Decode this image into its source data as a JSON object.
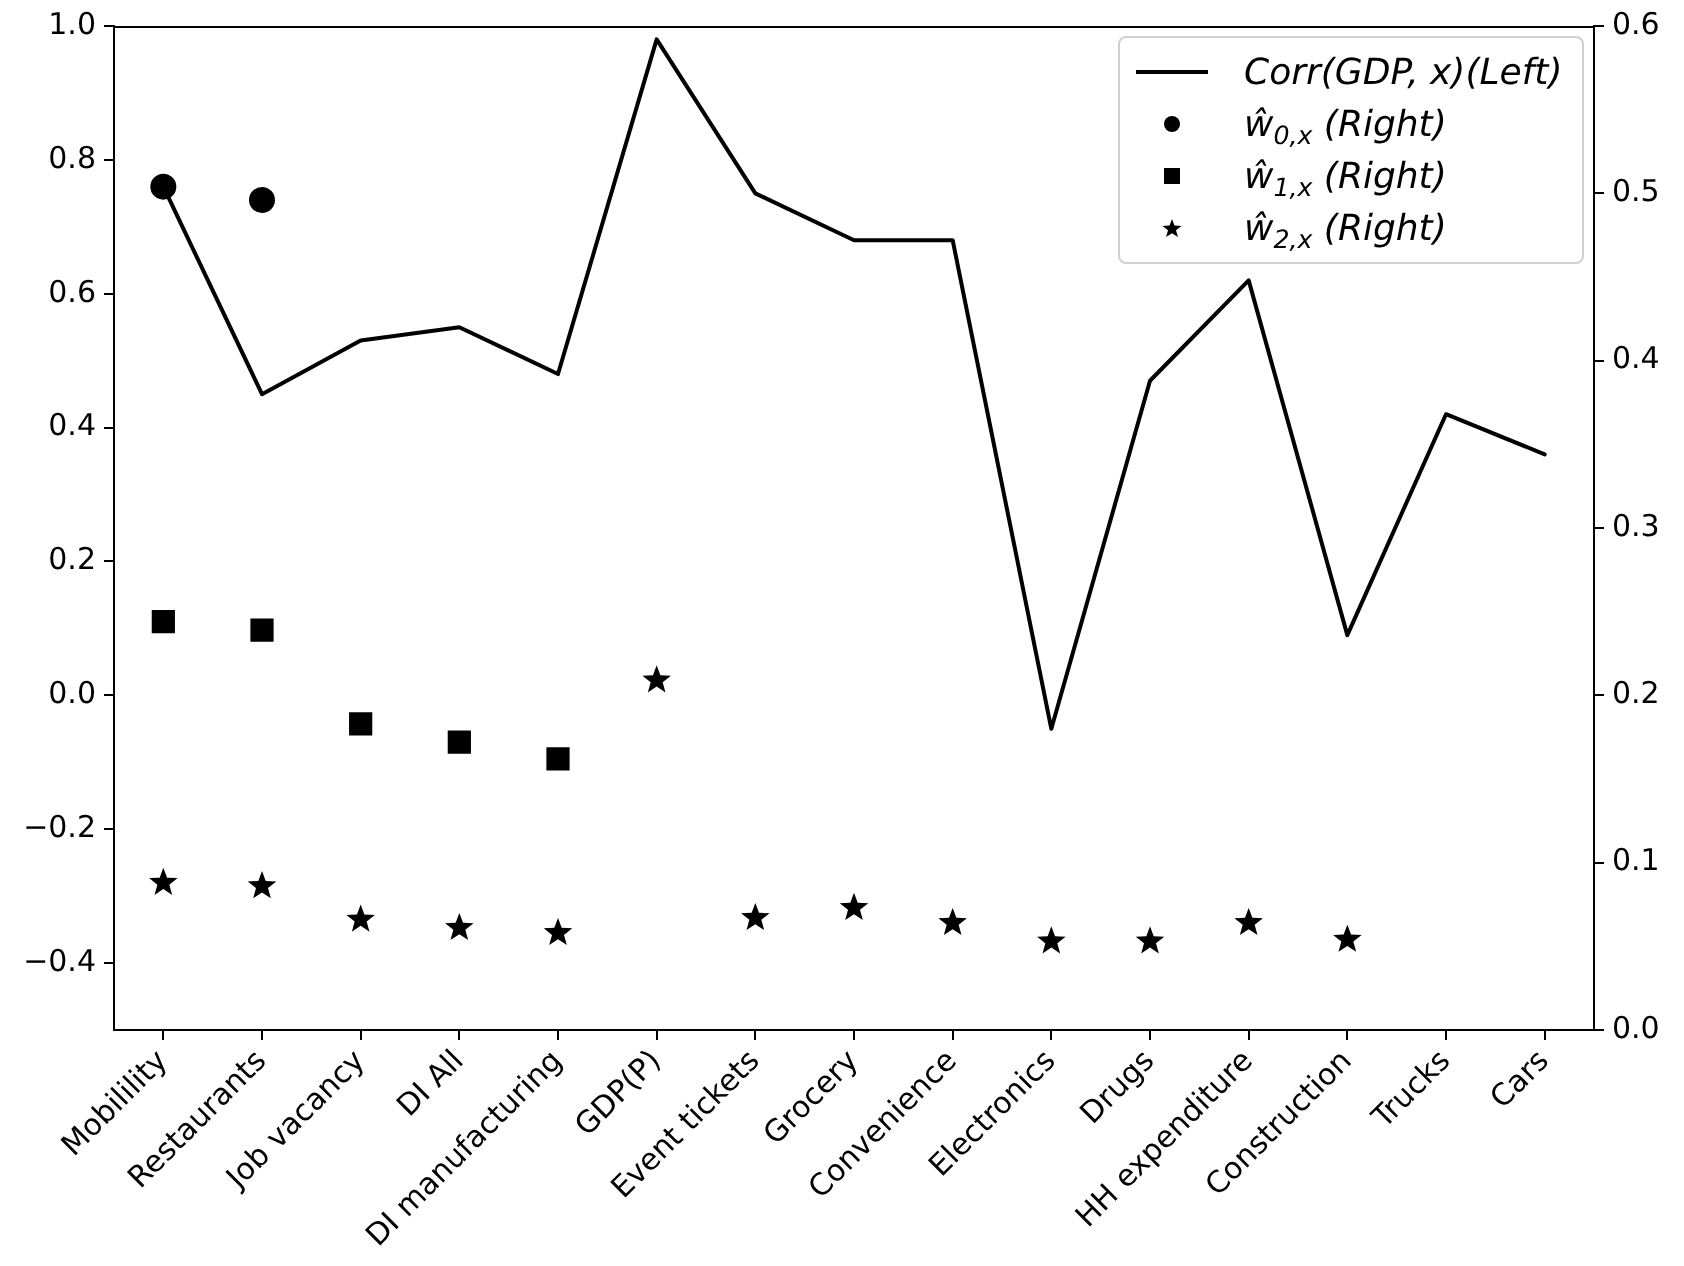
{
  "chart_data": {
    "type": "line",
    "categories": [
      "Mobilility",
      "Restaurants",
      "Job vacancy",
      "DI All",
      "DI manufacturing",
      "GDP(P)",
      "Event tickets",
      "Grocery",
      "Convenience",
      "Electronics",
      "Drugs",
      "HH expenditure",
      "Construction",
      "Trucks",
      "Cars"
    ],
    "series": [
      {
        "name": "Corr(GDP, x)(Left)",
        "type": "line",
        "color": "#000000",
        "marker": "none",
        "line_style": "solid",
        "values": [
          0.76,
          0.45,
          0.53,
          0.55,
          0.48,
          0.98,
          0.75,
          0.68,
          0.68,
          -0.05,
          0.47,
          0.62,
          0.09,
          0.42,
          0.36
        ]
      },
      {
        "name": "ŵ$_{0,x}$ (Right)",
        "type": "scatter",
        "axis": "y2",
        "color": "#000000",
        "marker": "circle",
        "values": [
          0.504,
          0.496,
          null,
          null,
          null,
          null,
          null,
          null,
          null,
          null,
          null,
          null,
          null,
          null,
          null
        ]
      },
      {
        "name": "ŵ$_{1,x}$ (Right)",
        "type": "scatter",
        "axis": "y2",
        "color": "#000000",
        "marker": "square",
        "values": [
          0.244,
          0.239,
          0.183,
          0.172,
          0.162,
          null,
          null,
          null,
          null,
          null,
          null,
          null,
          null,
          null,
          null
        ]
      },
      {
        "name": "ŵ$_{2,x}$ (Right)",
        "type": "scatter",
        "axis": "y2",
        "color": "#000000",
        "marker": "star",
        "values": [
          0.088,
          0.086,
          0.066,
          0.061,
          0.058,
          0.209,
          0.067,
          0.073,
          0.064,
          0.053,
          0.053,
          0.064,
          0.054,
          null,
          null
        ]
      }
    ],
    "ylim": [
      -0.5,
      1.0
    ],
    "yticks": [
      {
        "value": -0.4,
        "label": "−0.4"
      },
      {
        "value": -0.2,
        "label": "−0.2"
      },
      {
        "value": 0,
        "label": "0.0"
      },
      0.2,
      0.4,
      0.6,
      0.8,
      {
        "value": 1,
        "label": "1.0"
      }
    ],
    "y2lim": [
      0,
      0.6
    ],
    "y2ticks": [
      {
        "value": 0,
        "label": "0.0"
      },
      0.1,
      0.2,
      0.3,
      0.4,
      0.5,
      0.6
    ],
    "legend": "top right"
  }
}
